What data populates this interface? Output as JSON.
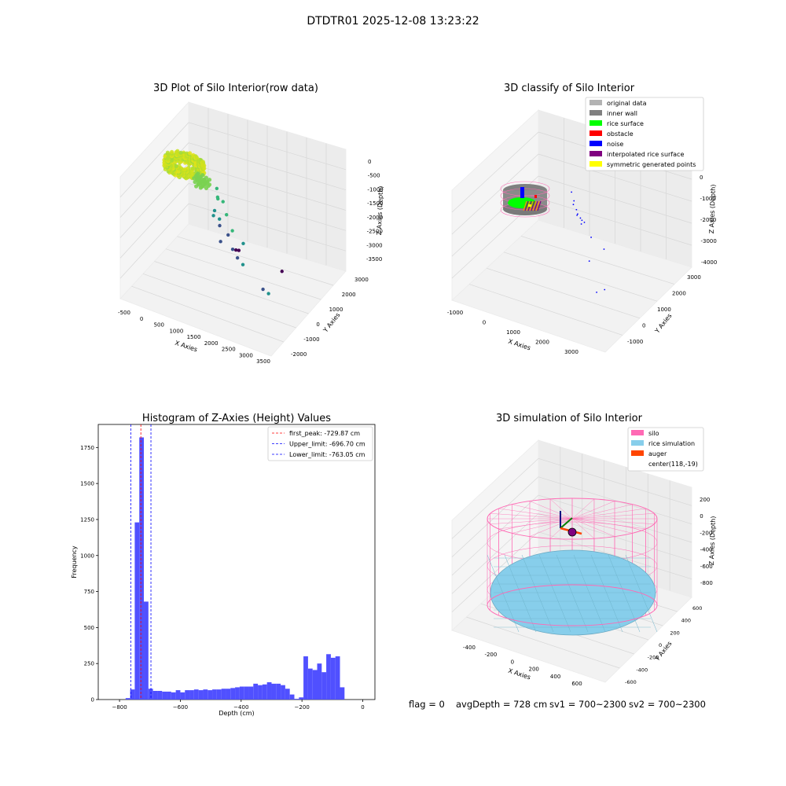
{
  "figure": {
    "suptitle": "DTDTR01 2025-12-08 13:23:22",
    "footer": {
      "flag": "flag = 0",
      "avg_depth": "avgDepth = 728 cm",
      "sv1": "sv1 = 700~2300",
      "sv2": "sv2 = 700~2300"
    }
  },
  "chart_data": [
    {
      "type": "scatter",
      "projection": "3d",
      "title": "3D Plot of Silo Interior(row data)",
      "xlabel": "X Axies",
      "ylabel": "Y Axies",
      "zlabel": "Z Axies (Depth)",
      "x_ticks": [
        "-500",
        "0",
        "500",
        "1000",
        "1500",
        "2000",
        "2500",
        "3000",
        "3500"
      ],
      "y_ticks": [
        "-2000",
        "-1000",
        "0",
        "1000",
        "2000",
        "3000"
      ],
      "z_ticks": [
        "0",
        "-500",
        "-1000",
        "-1500",
        "-2000",
        "-2500",
        "-3000",
        "-3500"
      ],
      "xlim": [
        -600,
        3500
      ],
      "ylim": [
        -2100,
        3200
      ],
      "zlim": [
        -3800,
        200
      ],
      "colormap": "viridis",
      "dense_cluster": {
        "x": [
          -500,
          500
        ],
        "y": [
          -500,
          500
        ],
        "z": [
          -800,
          -500
        ],
        "color": "#c8e020"
      },
      "points": [
        {
          "x": 900,
          "y": 100,
          "z": -1000
        },
        {
          "x": 1000,
          "y": 300,
          "z": -1200
        },
        {
          "x": 850,
          "y": -100,
          "z": -1400
        },
        {
          "x": 1100,
          "y": 200,
          "z": -1300
        },
        {
          "x": 1300,
          "y": 500,
          "z": -1500
        },
        {
          "x": 1600,
          "y": 900,
          "z": -1700
        },
        {
          "x": 2000,
          "y": 1200,
          "z": -1800
        },
        {
          "x": 700,
          "y": -300,
          "z": -2000
        },
        {
          "x": 900,
          "y": -100,
          "z": -2100
        },
        {
          "x": 600,
          "y": -500,
          "z": -2300
        },
        {
          "x": 1200,
          "y": 100,
          "z": -2400
        },
        {
          "x": 800,
          "y": -400,
          "z": -2500
        },
        {
          "x": 1500,
          "y": 600,
          "z": -2500
        },
        {
          "x": 2100,
          "y": 1500,
          "z": -2300
        },
        {
          "x": 2900,
          "y": 2200,
          "z": -2400
        },
        {
          "x": 3200,
          "y": 2600,
          "z": -2200
        },
        {
          "x": 1000,
          "y": 100,
          "z": -2700
        },
        {
          "x": 1700,
          "y": 800,
          "z": -2600
        },
        {
          "x": 1300,
          "y": -200,
          "z": -3000
        },
        {
          "x": 1200,
          "y": -700,
          "z": -3300
        },
        {
          "x": 2300,
          "y": -800,
          "z": -3600
        }
      ]
    },
    {
      "type": "scatter",
      "projection": "3d",
      "title": "3D classify of Silo Interior",
      "xlabel": "X Axies",
      "ylabel": "Y Axies",
      "zlabel": "Z Axies (Depth)",
      "x_ticks": [
        "-1000",
        "0",
        "1000",
        "2000",
        "3000"
      ],
      "y_ticks": [
        "-1000",
        "0",
        "1000",
        "2000",
        "3000"
      ],
      "z_ticks": [
        "0",
        "-1000",
        "-2000",
        "-3000",
        "-4000"
      ],
      "xlim": [
        -1200,
        3800
      ],
      "ylim": [
        -1500,
        3200
      ],
      "zlim": [
        -4200,
        200
      ],
      "legend_position": "top-right",
      "legend": [
        {
          "label": "original data",
          "color": "#b3b3b3"
        },
        {
          "label": "inner wall",
          "color": "#808080"
        },
        {
          "label": "rice surface",
          "color": "#00ff00"
        },
        {
          "label": "obstacle",
          "color": "#ff0000"
        },
        {
          "label": "noise",
          "color": "#0000ff"
        },
        {
          "label": "interpolated rice surface",
          "color": "#800080"
        },
        {
          "label": "symmetric generated points",
          "color": "#ffff00"
        }
      ],
      "noise_points": [
        {
          "x": 900,
          "y": 200,
          "z": -1100
        },
        {
          "x": 1200,
          "y": 600,
          "z": -1200
        },
        {
          "x": 1500,
          "y": 900,
          "z": -1300
        },
        {
          "x": 1700,
          "y": 1000,
          "z": -1500
        },
        {
          "x": 800,
          "y": -100,
          "z": -1700
        },
        {
          "x": 1100,
          "y": 200,
          "z": -1900
        },
        {
          "x": 1300,
          "y": 300,
          "z": -2000
        },
        {
          "x": 700,
          "y": -400,
          "z": -2300
        },
        {
          "x": 950,
          "y": -200,
          "z": -2400
        },
        {
          "x": 2200,
          "y": 1400,
          "z": -2500
        },
        {
          "x": 3100,
          "y": 2500,
          "z": -2600
        },
        {
          "x": 3600,
          "y": 2900,
          "z": -2000
        },
        {
          "x": 900,
          "y": -500,
          "z": -2800
        },
        {
          "x": 1000,
          "y": -700,
          "z": -3500
        },
        {
          "x": 1300,
          "y": -900,
          "z": -4000
        }
      ]
    },
    {
      "type": "bar",
      "title": "Histogram of Z-Axies (Height) Values",
      "xlabel": "Depth (cm)",
      "ylabel": "Frequency",
      "xlim": [
        -870,
        40
      ],
      "ylim": [
        0,
        1910
      ],
      "x_ticks": [
        -800,
        -600,
        -400,
        -200,
        0
      ],
      "y_ticks": [
        0,
        250,
        500,
        750,
        1000,
        1250,
        1500,
        1750
      ],
      "bar_color": "#5050ff",
      "bin_width": 15,
      "bins": [
        {
          "x": -780,
          "v": 10
        },
        {
          "x": -765,
          "v": 70
        },
        {
          "x": -750,
          "v": 1230
        },
        {
          "x": -735,
          "v": 1820
        },
        {
          "x": -720,
          "v": 680
        },
        {
          "x": -705,
          "v": 75
        },
        {
          "x": -690,
          "v": 60
        },
        {
          "x": -675,
          "v": 60
        },
        {
          "x": -660,
          "v": 55
        },
        {
          "x": -645,
          "v": 55
        },
        {
          "x": -630,
          "v": 50
        },
        {
          "x": -615,
          "v": 65
        },
        {
          "x": -600,
          "v": 50
        },
        {
          "x": -585,
          "v": 65
        },
        {
          "x": -570,
          "v": 65
        },
        {
          "x": -555,
          "v": 70
        },
        {
          "x": -540,
          "v": 65
        },
        {
          "x": -525,
          "v": 70
        },
        {
          "x": -510,
          "v": 65
        },
        {
          "x": -495,
          "v": 70
        },
        {
          "x": -480,
          "v": 70
        },
        {
          "x": -465,
          "v": 75
        },
        {
          "x": -450,
          "v": 75
        },
        {
          "x": -435,
          "v": 80
        },
        {
          "x": -420,
          "v": 85
        },
        {
          "x": -405,
          "v": 90
        },
        {
          "x": -390,
          "v": 90
        },
        {
          "x": -375,
          "v": 90
        },
        {
          "x": -360,
          "v": 110
        },
        {
          "x": -345,
          "v": 100
        },
        {
          "x": -330,
          "v": 105
        },
        {
          "x": -315,
          "v": 120
        },
        {
          "x": -300,
          "v": 110
        },
        {
          "x": -285,
          "v": 110
        },
        {
          "x": -270,
          "v": 100
        },
        {
          "x": -255,
          "v": 75
        },
        {
          "x": -240,
          "v": 35
        },
        {
          "x": -225,
          "v": 5
        },
        {
          "x": -210,
          "v": 15
        },
        {
          "x": -195,
          "v": 300
        },
        {
          "x": -180,
          "v": 215
        },
        {
          "x": -165,
          "v": 205
        },
        {
          "x": -150,
          "v": 250
        },
        {
          "x": -135,
          "v": 190
        },
        {
          "x": -120,
          "v": 315
        },
        {
          "x": -105,
          "v": 290
        },
        {
          "x": -90,
          "v": 300
        },
        {
          "x": -75,
          "v": 85
        }
      ],
      "vlines": [
        {
          "x": -729.87,
          "label": "first_peak: -729.87 cm",
          "color": "#ff0000"
        },
        {
          "x": -696.7,
          "label": "Upper_limit: -696.70 cm",
          "color": "#0000ff"
        },
        {
          "x": -763.05,
          "label": "Lower_limit: -763.05 cm",
          "color": "#0000ff"
        }
      ],
      "legend_position": "top-right"
    },
    {
      "type": "surface",
      "projection": "3d",
      "title": "3D simulation of Silo Interior",
      "xlabel": "X Axies",
      "ylabel": "Y Axies",
      "zlabel": "Z Axies (Depth)",
      "x_ticks": [
        "-400",
        "-200",
        "0",
        "200",
        "400",
        "600"
      ],
      "y_ticks": [
        "-600",
        "-400",
        "-200",
        "0",
        "200",
        "400",
        "600"
      ],
      "z_ticks": [
        "200",
        "0",
        "-200",
        "-400",
        "-600",
        "-800"
      ],
      "xlim": [
        -500,
        700
      ],
      "ylim": [
        -700,
        700
      ],
      "zlim": [
        -950,
        350
      ],
      "legend_position": "top-right",
      "legend": [
        {
          "label": "silo",
          "color": "#ff69b4"
        },
        {
          "label": "rice simulation",
          "color": "#87ceeb"
        },
        {
          "label": "auger",
          "color": "#ff4500"
        },
        {
          "label": "center(118,-19)",
          "color": "none"
        }
      ],
      "silo": {
        "radius": 600,
        "z_top": 0,
        "z_bottom": -900
      },
      "rice_surface_z": -728,
      "center": {
        "x": 118,
        "y": -19
      }
    }
  ]
}
